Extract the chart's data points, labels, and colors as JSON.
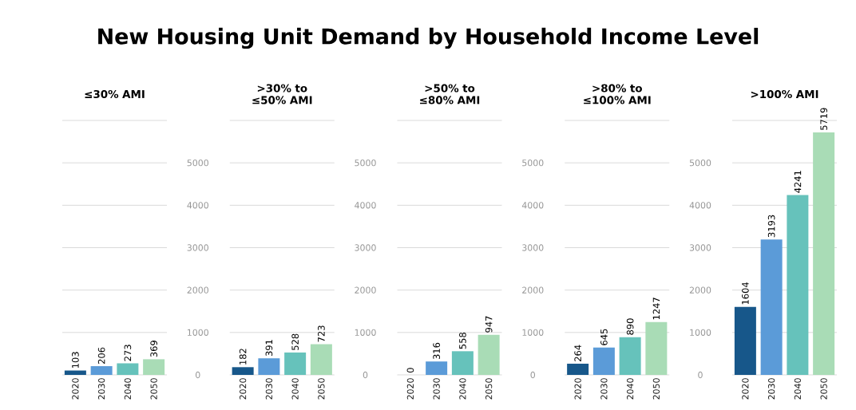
{
  "chart_data": [
    {
      "type": "bar",
      "title": "New Housing Unit Demand by Household Income Level",
      "subtitle": "≤30% AMI",
      "categories": [
        "2020",
        "2030",
        "2040",
        "2050"
      ],
      "values": [
        103,
        206,
        273,
        369
      ],
      "colors": [
        "#17578a",
        "#5b9bd8",
        "#66c2bb",
        "#a9dcb6"
      ],
      "ylim": [
        0,
        6000
      ],
      "yticks": [
        0,
        1000,
        2000,
        3000,
        4000,
        5000
      ],
      "grid": "y",
      "data_labels": true,
      "tick_labels": "x"
    },
    {
      "type": "bar",
      "title": ">30% to ≤50% AMI",
      "categories": [
        "2020",
        "2030",
        "2040",
        "2050"
      ],
      "values": [
        182,
        391,
        528,
        723
      ],
      "colors": [
        "#17578a",
        "#5b9bd8",
        "#66c2bb",
        "#a9dcb6"
      ],
      "ylim": [
        0,
        6000
      ],
      "yticks": [
        0,
        1000,
        2000,
        3000,
        4000,
        5000
      ],
      "grid": "y",
      "data_labels": true
    },
    {
      "type": "bar",
      "title": ">50% to ≤80% AMI",
      "categories": [
        "2020",
        "2030",
        "2040",
        "2050"
      ],
      "values": [
        0,
        316,
        558,
        947
      ],
      "colors": [
        "#17578a",
        "#5b9bd8",
        "#66c2bb",
        "#a9dcb6"
      ],
      "ylim": [
        0,
        6000
      ],
      "yticks": [
        0,
        1000,
        2000,
        3000,
        4000,
        5000
      ],
      "grid": "y",
      "data_labels": true
    },
    {
      "type": "bar",
      "title": ">80% to ≤100% AMI",
      "categories": [
        "2020",
        "2030",
        "2040",
        "2050"
      ],
      "values": [
        264,
        645,
        890,
        1247
      ],
      "colors": [
        "#17578a",
        "#5b9bd8",
        "#66c2bb",
        "#a9dcb6"
      ],
      "ylim": [
        0,
        6000
      ],
      "yticks": [
        0,
        1000,
        2000,
        3000,
        4000,
        5000
      ],
      "grid": "y",
      "data_labels": true
    },
    {
      "type": "bar",
      "title": ">100% AMI",
      "categories": [
        "2020",
        "2030",
        "2040",
        "2050"
      ],
      "values": [
        1604,
        3193,
        4241,
        5719
      ],
      "colors": [
        "#17578a",
        "#5b9bd8",
        "#66c2bb",
        "#a9dcb6"
      ],
      "ylim": [
        0,
        6000
      ],
      "yticks": [
        0,
        1000,
        2000,
        3000,
        4000,
        5000
      ],
      "grid": "y",
      "data_labels": true
    }
  ]
}
